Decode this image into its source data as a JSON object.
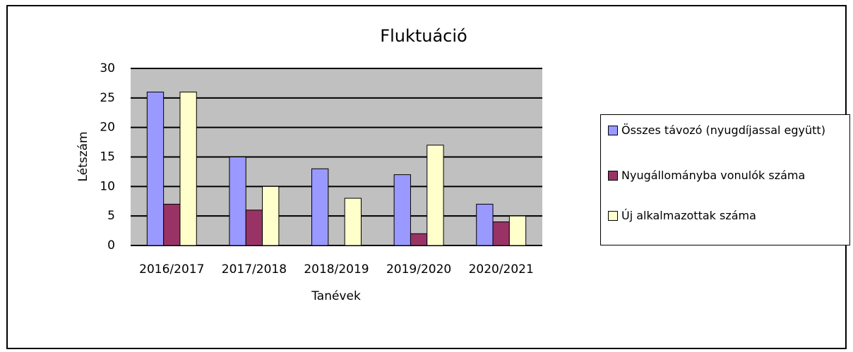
{
  "chart_data": {
    "type": "bar",
    "title": "Fluktuáció",
    "x_label": "Tanévek",
    "y_label": "Létszám",
    "categories": [
      "2016/2017",
      "2017/2018",
      "2018/2019",
      "2019/2020",
      "2020/2021"
    ],
    "series": [
      {
        "name": "Összes távozó (nyugdíjassal együtt)",
        "color": "#9999ff",
        "values": [
          26,
          15,
          13,
          12,
          7
        ]
      },
      {
        "name": "Nyugállományba vonulók száma",
        "color": "#993366",
        "values": [
          7,
          6,
          0,
          2,
          4
        ]
      },
      {
        "name": "Új alkalmazottak száma",
        "color": "#ffffcc",
        "values": [
          26,
          10,
          8,
          17,
          5
        ]
      }
    ],
    "ylim": [
      0,
      30
    ],
    "yticks": [
      0,
      5,
      10,
      15,
      20,
      25,
      30
    ],
    "grid": true,
    "legend": "right"
  }
}
